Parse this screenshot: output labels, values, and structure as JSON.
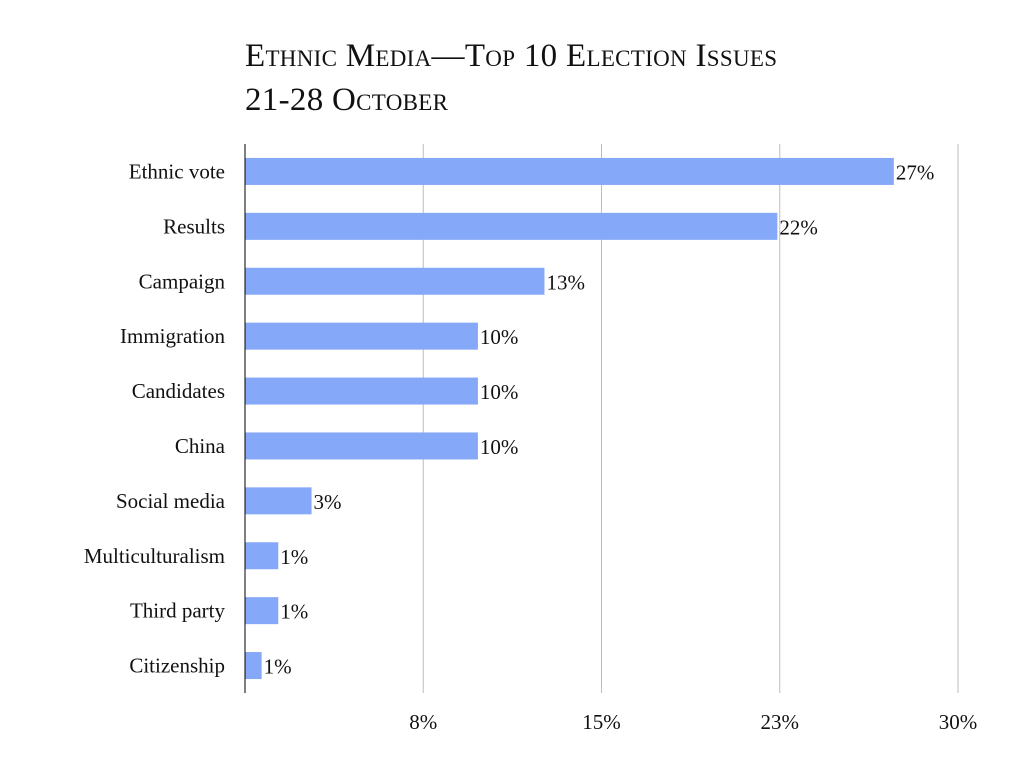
{
  "chart_data": {
    "type": "bar",
    "orientation": "horizontal",
    "title": "Ethnic Media—Top 10 Election Issues",
    "subtitle": "21-28 October",
    "categories": [
      "Ethnic vote",
      "Results",
      "Campaign",
      "Immigration",
      "Candidates",
      "China",
      "Social media",
      "Multiculturalism",
      "Third party",
      "Citizenship"
    ],
    "values": [
      27.3,
      22.4,
      12.6,
      9.8,
      9.8,
      9.8,
      2.8,
      1.4,
      1.4,
      0.7
    ],
    "data_labels": [
      "27%",
      "22%",
      "13%",
      "10%",
      "10%",
      "10%",
      "3%",
      "1%",
      "1%",
      "1%"
    ],
    "xlabel": "",
    "ylabel": "",
    "xlim": [
      0,
      30
    ],
    "xticks": [
      7.5,
      15,
      22.5,
      30
    ],
    "xtick_labels": [
      "8%",
      "15%",
      "23%",
      "30%"
    ],
    "grid": true,
    "legend": "none",
    "bar_color": "#86a8f8"
  }
}
